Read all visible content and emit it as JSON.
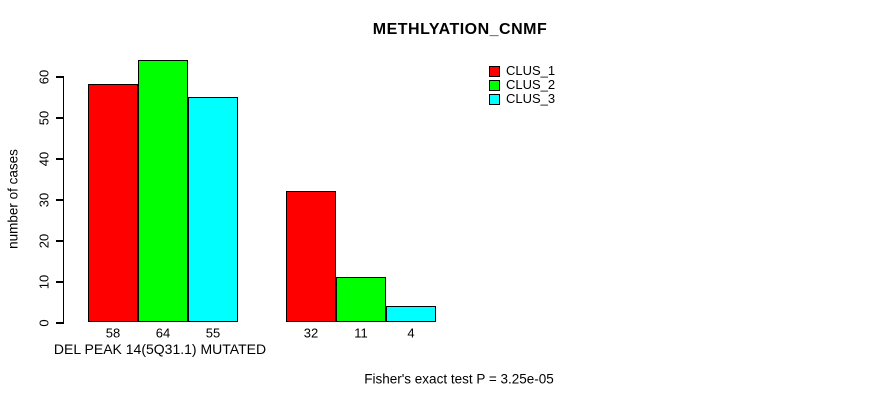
{
  "page": {
    "background_color": "#FFFFFF",
    "text_color": "#000000"
  },
  "chart_data": {
    "type": "bar",
    "title": "METHLYATION_CNMF",
    "xlabel": "DEL PEAK 14(5Q31.1) MUTATED",
    "ylabel": "number of cases",
    "ylim": [
      0,
      60
    ],
    "yticks": [
      0,
      10,
      20,
      30,
      40,
      50,
      60
    ],
    "grid": false,
    "legend_position": "top-right",
    "series": [
      {
        "name": "CLUS_1",
        "color": "#FF0000",
        "values": [
          58,
          32
        ]
      },
      {
        "name": "CLUS_2",
        "color": "#00FF00",
        "values": [
          64,
          11
        ]
      },
      {
        "name": "CLUS_3",
        "color": "#00FFFF",
        "values": [
          55,
          4
        ]
      }
    ],
    "groups": [
      {
        "bar_labels": [
          "58",
          "64",
          "55"
        ]
      },
      {
        "bar_labels": [
          "32",
          "11",
          "4"
        ]
      }
    ],
    "bar_border_color": "#000000",
    "axis_color": "#000000",
    "annotation": "Fisher's exact test P = 3.25e-05"
  }
}
